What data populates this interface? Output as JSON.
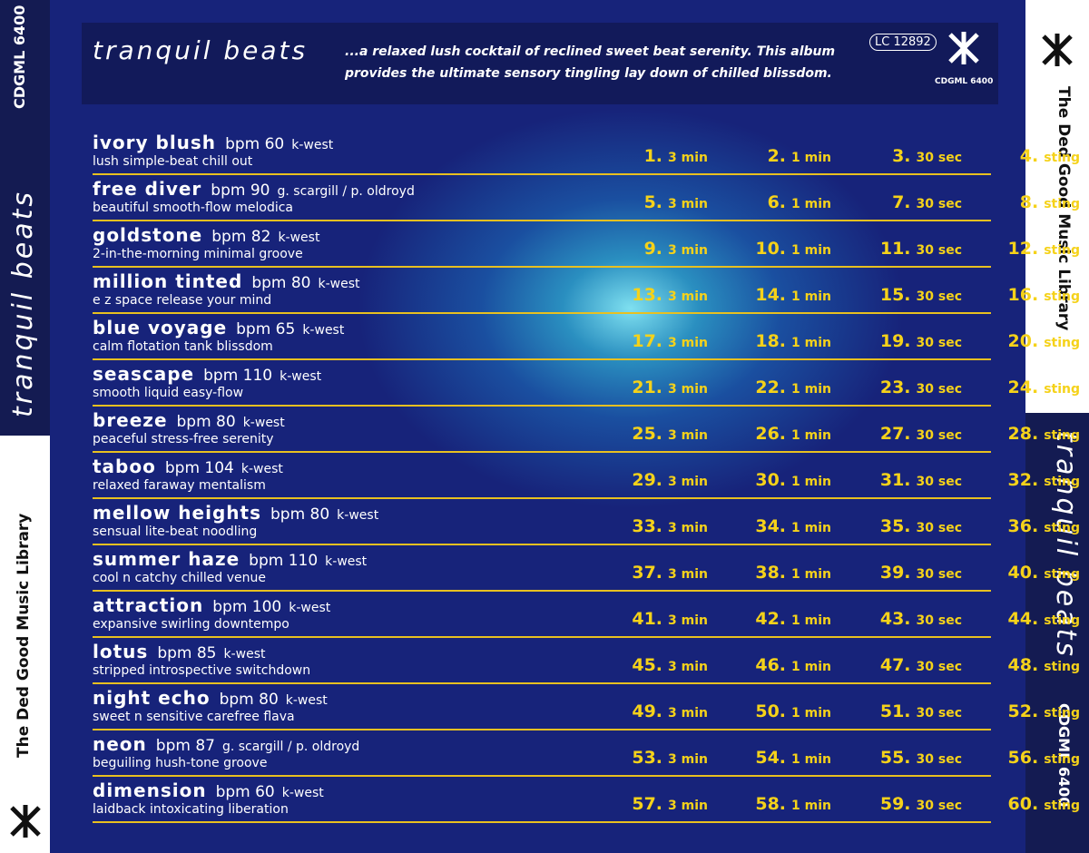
{
  "left_spine": {
    "catalog": "CDGML 6400",
    "title": "tranquil beats",
    "library": "The Ded Good Music Library"
  },
  "right_spine": {
    "library": "The Ded Good Music Library",
    "title": "tranquil beats",
    "catalog": "CDGML 6400"
  },
  "header": {
    "title": "tranquil beats",
    "description": "...a relaxed lush cocktail of reclined sweet beat serenity. This album provides the ultimate sensory tingling lay down of chilled blissdom.",
    "lc_prefix": "LC",
    "lc_number": "12892",
    "logo_catalog": "CDGML 6400"
  },
  "tracks": [
    {
      "name": "ivory blush",
      "bpm": "bpm 60",
      "composer": "k-west",
      "description": "lush simple-beat chill out",
      "versions": [
        {
          "number": "1.",
          "length": "3 min"
        },
        {
          "number": "2.",
          "length": "1 min"
        },
        {
          "number": "3.",
          "length": "30 sec"
        },
        {
          "number": "4.",
          "length": "sting"
        }
      ]
    },
    {
      "name": "free diver",
      "bpm": "bpm 90",
      "composer": "g. scargill / p. oldroyd",
      "description": "beautiful smooth-flow melodica",
      "versions": [
        {
          "number": "5.",
          "length": "3 min"
        },
        {
          "number": "6.",
          "length": "1 min"
        },
        {
          "number": "7.",
          "length": "30 sec"
        },
        {
          "number": "8.",
          "length": "sting"
        }
      ]
    },
    {
      "name": "goldstone",
      "bpm": "bpm 82",
      "composer": "k-west",
      "description": "2-in-the-morning minimal groove",
      "versions": [
        {
          "number": "9.",
          "length": "3 min"
        },
        {
          "number": "10.",
          "length": "1 min"
        },
        {
          "number": "11.",
          "length": "30 sec"
        },
        {
          "number": "12.",
          "length": "sting"
        }
      ]
    },
    {
      "name": "million tinted",
      "bpm": "bpm 80",
      "composer": "k-west",
      "description": "e z space release your mind",
      "versions": [
        {
          "number": "13.",
          "length": "3 min"
        },
        {
          "number": "14.",
          "length": "1 min"
        },
        {
          "number": "15.",
          "length": "30 sec"
        },
        {
          "number": "16.",
          "length": "sting"
        }
      ]
    },
    {
      "name": "blue voyage",
      "bpm": "bpm 65",
      "composer": "k-west",
      "description": "calm flotation tank blissdom",
      "versions": [
        {
          "number": "17.",
          "length": "3 min"
        },
        {
          "number": "18.",
          "length": "1 min"
        },
        {
          "number": "19.",
          "length": "30 sec"
        },
        {
          "number": "20.",
          "length": "sting"
        }
      ]
    },
    {
      "name": "seascape",
      "bpm": "bpm 110",
      "composer": "k-west",
      "description": "smooth liquid easy-flow",
      "versions": [
        {
          "number": "21.",
          "length": "3 min"
        },
        {
          "number": "22.",
          "length": "1 min"
        },
        {
          "number": "23.",
          "length": "30 sec"
        },
        {
          "number": "24.",
          "length": "sting"
        }
      ]
    },
    {
      "name": "breeze",
      "bpm": "bpm 80",
      "composer": "k-west",
      "description": "peaceful stress-free serenity",
      "versions": [
        {
          "number": "25.",
          "length": "3 min"
        },
        {
          "number": "26.",
          "length": "1 min"
        },
        {
          "number": "27.",
          "length": "30 sec"
        },
        {
          "number": "28.",
          "length": "sting"
        }
      ]
    },
    {
      "name": "taboo",
      "bpm": "bpm 104",
      "composer": "k-west",
      "description": "relaxed faraway mentalism",
      "versions": [
        {
          "number": "29.",
          "length": "3 min"
        },
        {
          "number": "30.",
          "length": "1 min"
        },
        {
          "number": "31.",
          "length": "30 sec"
        },
        {
          "number": "32.",
          "length": "sting"
        }
      ]
    },
    {
      "name": "mellow heights",
      "bpm": "bpm 80",
      "composer": "k-west",
      "description": "sensual lite-beat noodling",
      "versions": [
        {
          "number": "33.",
          "length": "3 min"
        },
        {
          "number": "34.",
          "length": "1 min"
        },
        {
          "number": "35.",
          "length": "30 sec"
        },
        {
          "number": "36.",
          "length": "sting"
        }
      ]
    },
    {
      "name": "summer haze",
      "bpm": "bpm 110",
      "composer": "k-west",
      "description": "cool n catchy chilled venue",
      "versions": [
        {
          "number": "37.",
          "length": "3 min"
        },
        {
          "number": "38.",
          "length": "1 min"
        },
        {
          "number": "39.",
          "length": "30 sec"
        },
        {
          "number": "40.",
          "length": "sting"
        }
      ]
    },
    {
      "name": "attraction",
      "bpm": "bpm 100",
      "composer": "k-west",
      "description": "expansive swirling downtempo",
      "versions": [
        {
          "number": "41.",
          "length": "3 min"
        },
        {
          "number": "42.",
          "length": "1 min"
        },
        {
          "number": "43.",
          "length": "30 sec"
        },
        {
          "number": "44.",
          "length": "sting"
        }
      ]
    },
    {
      "name": "lotus",
      "bpm": "bpm 85",
      "composer": "k-west",
      "description": "stripped introspective switchdown",
      "versions": [
        {
          "number": "45.",
          "length": "3 min"
        },
        {
          "number": "46.",
          "length": "1 min"
        },
        {
          "number": "47.",
          "length": "30 sec"
        },
        {
          "number": "48.",
          "length": "sting"
        }
      ]
    },
    {
      "name": "night echo",
      "bpm": "bpm 80",
      "composer": "k-west",
      "description": "sweet n sensitive carefree flava",
      "versions": [
        {
          "number": "49.",
          "length": "3 min"
        },
        {
          "number": "50.",
          "length": "1 min"
        },
        {
          "number": "51.",
          "length": "30 sec"
        },
        {
          "number": "52.",
          "length": "sting"
        }
      ]
    },
    {
      "name": "neon",
      "bpm": "bpm 87",
      "composer": "g. scargill / p. oldroyd",
      "description": "beguiling hush-tone groove",
      "versions": [
        {
          "number": "53.",
          "length": "3 min"
        },
        {
          "number": "54.",
          "length": "1 min"
        },
        {
          "number": "55.",
          "length": "30 sec"
        },
        {
          "number": "56.",
          "length": "sting"
        }
      ]
    },
    {
      "name": "dimension",
      "bpm": "bpm 60",
      "composer": "k-west",
      "description": "laidback intoxicating liberation",
      "versions": [
        {
          "number": "57.",
          "length": "3 min"
        },
        {
          "number": "58.",
          "length": "1 min"
        },
        {
          "number": "59.",
          "length": "30 sec"
        },
        {
          "number": "60.",
          "length": "sting"
        }
      ]
    }
  ]
}
